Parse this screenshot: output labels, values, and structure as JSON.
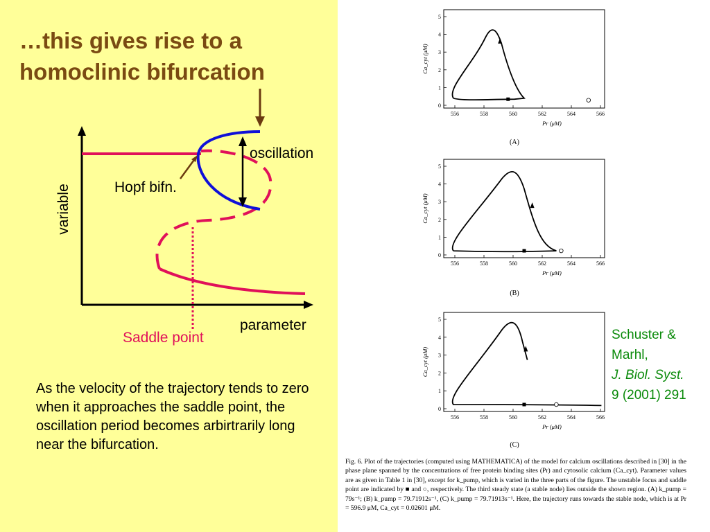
{
  "slide": {
    "title": "…this gives rise to a homoclinic bifurcation",
    "explanation": "As the velocity of the trajectory tends to zero when it approaches the saddle point, the oscillation period becomes arbirtrarily long near the bifurcation."
  },
  "diagram": {
    "x_axis_label": "parameter",
    "y_axis_label": "variable",
    "oscillation_label": "oscillation",
    "hopf_label": "Hopf bifn.",
    "saddle_label": "Saddle point"
  },
  "citation": {
    "authors": "Schuster &",
    "authors_2": "Marhl,",
    "journal": "J. Biol. Syst.",
    "ref": "9 (2001) 291"
  },
  "figure": {
    "x_axis_label": "Pr (μM)",
    "y_axis_label": "Ca_cyt (μM)",
    "x_ticks": [
      "556",
      "558",
      "560",
      "562",
      "564",
      "566"
    ],
    "y_ticks": [
      "0",
      "1",
      "2",
      "3",
      "4",
      "5"
    ],
    "panels": [
      {
        "label": "(A)"
      },
      {
        "label": "(B)"
      },
      {
        "label": "(C)"
      }
    ],
    "caption": "Fig. 6. Plot of the trajectories (computed using MATHEMATICA) of the model for calcium oscillations described in [30] in the phase plane spanned by the concentrations of free protein binding sites (Pr) and cytosolic calcium (Ca_cyt). Parameter values are as given in Table 1 in [30], except for k_pump, which is varied in the three parts of the figure. The unstable focus and saddle point are indicated by ■ and ○, respectively. The third steady state (a stable node) lies outside the shown region. (A) k_pump = 79s⁻¹; (B) k_pump = 79.71912s⁻¹, (C) k_pump = 79.71913s⁻¹. Here, the trajectory runs towards the stable node, which is at Pr = 596.9 μM, Ca_cyt = 0.02601 μM."
  },
  "colors": {
    "left_background": "#ffff99",
    "title": "#7a4a12",
    "stable_branch": "#e0105a",
    "limit_cycle": "#1010d8",
    "arrow": "#6b3a10",
    "saddle_label": "#e0105a",
    "citation": "#0a8a0a"
  }
}
